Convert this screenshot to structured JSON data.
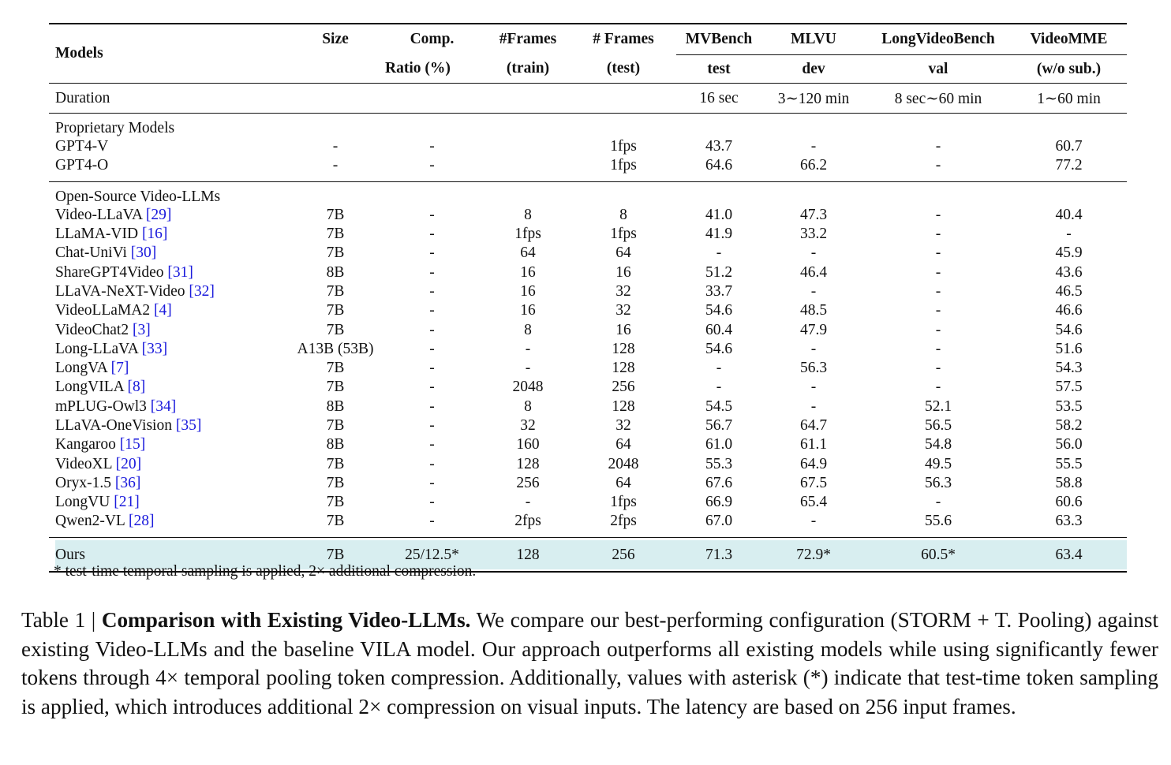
{
  "table": {
    "columns": [
      {
        "top": "Models"
      },
      {
        "top": "Size"
      },
      {
        "top": "Comp.",
        "bottom": "Ratio (%)"
      },
      {
        "top": "#Frames",
        "bottom": "(train)"
      },
      {
        "top": "# Frames",
        "bottom": "(test)"
      },
      {
        "top": "MVBench",
        "bottom": "test"
      },
      {
        "top": "MLVU",
        "bottom": "dev"
      },
      {
        "top": "LongVideoBench",
        "bottom": "val"
      },
      {
        "top": "VideoMME",
        "bottom": "(w/o sub.)"
      }
    ],
    "duration": {
      "label": "Duration",
      "values": [
        "16 sec",
        "3∼120 min",
        "8 sec∼60 min",
        "1∼60 min"
      ]
    },
    "sections": [
      {
        "title": "Proprietary Models",
        "rows": [
          {
            "model": "GPT4-V",
            "cells": [
              "-",
              "-",
              null,
              "1fps",
              "43.7",
              "-",
              "-",
              "60.7"
            ]
          },
          {
            "model": "GPT4-O",
            "cells": [
              "-",
              "-",
              null,
              "1fps",
              "64.6",
              "66.2",
              "-",
              "77.2"
            ]
          }
        ]
      },
      {
        "title": "Open-Source Video-LLMs",
        "rows": [
          {
            "model": "Video-LLaVA",
            "ref": "[29]",
            "cells": [
              "7B",
              "-",
              "8",
              "8",
              "41.0",
              "47.3",
              "-",
              "40.4"
            ]
          },
          {
            "model": "LLaMA-VID",
            "ref": "[16]",
            "cells": [
              "7B",
              "-",
              "1fps",
              "1fps",
              "41.9",
              "33.2",
              "-",
              "-"
            ]
          },
          {
            "model": "Chat-UniVi",
            "ref": "[30]",
            "cells": [
              "7B",
              "-",
              "64",
              "64",
              "-",
              "-",
              "-",
              "45.9"
            ]
          },
          {
            "model": "ShareGPT4Video",
            "ref": "[31]",
            "cells": [
              "8B",
              "-",
              "16",
              "16",
              "51.2",
              "46.4",
              "-",
              "43.6"
            ]
          },
          {
            "model": "LLaVA-NeXT-Video",
            "ref": "[32]",
            "cells": [
              "7B",
              "-",
              "16",
              "32",
              "33.7",
              "-",
              "-",
              "46.5"
            ]
          },
          {
            "model": "VideoLLaMA2",
            "ref": "[4]",
            "cells": [
              "7B",
              "-",
              "16",
              "32",
              "54.6",
              "48.5",
              "-",
              "46.6"
            ]
          },
          {
            "model": "VideoChat2",
            "ref": "[3]",
            "cells": [
              "7B",
              "-",
              "8",
              "16",
              "60.4",
              "47.9",
              "-",
              "54.6"
            ]
          },
          {
            "model": "Long-LLaVA",
            "ref": "[33]",
            "cells": [
              "A13B (53B)",
              "-",
              "-",
              "128",
              "54.6",
              "-",
              "-",
              "51.6"
            ]
          },
          {
            "model": "LongVA",
            "ref": "[7]",
            "cells": [
              "7B",
              "-",
              "-",
              "128",
              "-",
              "56.3",
              "-",
              "54.3"
            ]
          },
          {
            "model": "LongVILA",
            "ref": "[8]",
            "cells": [
              "7B",
              "-",
              "2048",
              "256",
              "-",
              "-",
              "-",
              "57.5"
            ]
          },
          {
            "model": "mPLUG-Owl3",
            "ref": "[34]",
            "cells": [
              "8B",
              "-",
              "8",
              "128",
              "54.5",
              "-",
              "52.1",
              "53.5"
            ]
          },
          {
            "model": "LLaVA-OneVision",
            "ref": "[35]",
            "cells": [
              "7B",
              "-",
              "32",
              "32",
              "56.7",
              "64.7",
              "56.5",
              "58.2"
            ]
          },
          {
            "model": "Kangaroo",
            "ref": "[15]",
            "cells": [
              "8B",
              "-",
              "160",
              "64",
              "61.0",
              "61.1",
              "54.8",
              "56.0"
            ]
          },
          {
            "model": "VideoXL",
            "ref": "[20]",
            "cells": [
              "7B",
              "-",
              "128",
              "2048",
              "55.3",
              "64.9",
              "49.5",
              "55.5"
            ]
          },
          {
            "model": "Oryx-1.5",
            "ref": "[36]",
            "cells": [
              "7B",
              "-",
              "256",
              "64",
              "67.6",
              "67.5",
              "56.3",
              "58.8"
            ]
          },
          {
            "model": "LongVU",
            "ref": "[21]",
            "cells": [
              "7B",
              "-",
              "-",
              "1fps",
              "66.9",
              "65.4",
              "-",
              "60.6"
            ]
          },
          {
            "model": "Qwen2-VL",
            "ref": "[28]",
            "cells": [
              "7B",
              "-",
              "2fps",
              "2fps",
              "67.0",
              "-",
              "55.6",
              "63.3"
            ]
          }
        ]
      }
    ],
    "ours": {
      "model": "Ours",
      "cells": [
        "7B",
        "25/12.5*",
        "128",
        "256",
        "71.3",
        "72.9*",
        "60.5*",
        "63.4"
      ]
    },
    "footnote": "* test-time temporal sampling is applied, 2× additional compression."
  },
  "caption": {
    "label": "Table 1 |",
    "title": "Comparison with Existing Video-LLMs.",
    "text": "We compare our best-performing configuration (STORM + T. Pooling) against existing Video-LLMs and the baseline VILA model. Our approach outperforms all existing models while using significantly fewer tokens through 4× temporal pooling token compression. Additionally, values with asterisk (*) indicate that test-time token sampling is applied, which introduces additional 2× compression on visual inputs. The latency are based on 256 input frames."
  }
}
